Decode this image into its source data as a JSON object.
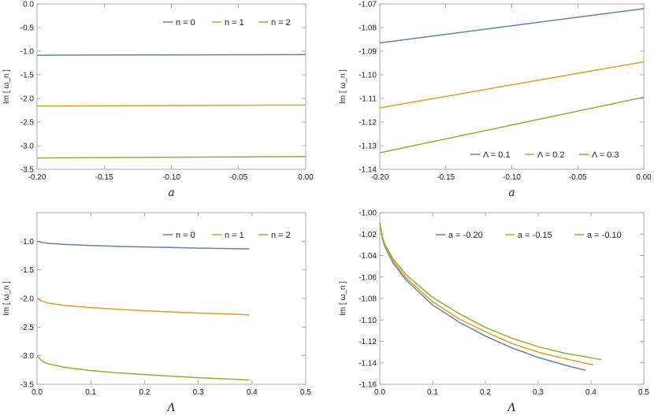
{
  "colors": {
    "blue": "#5E81B5",
    "orange": "#E19C24",
    "green": "#8FB032"
  },
  "chart_data": [
    {
      "type": "line",
      "title": "",
      "xlabel": "a",
      "ylabel": "Im [ ω_n ]",
      "xlim": [
        -0.2,
        0.0
      ],
      "ylim": [
        -3.5,
        0.0
      ],
      "xticks": [
        "-0.20",
        "-0.15",
        "-0.10",
        "-0.05",
        "0.00"
      ],
      "yticks": [
        "0.0",
        "-0.5",
        "-1.0",
        "-1.5",
        "-2.0",
        "-2.5",
        "-3.0",
        "-3.5"
      ],
      "legend_position": "top-right",
      "series": [
        {
          "name": "n = 0",
          "color": "blue",
          "x": [
            -0.2,
            0.0
          ],
          "y": [
            -1.085,
            -1.072
          ]
        },
        {
          "name": "n = 1",
          "color": "orange",
          "x": [
            -0.2,
            0.0
          ],
          "y": [
            -2.16,
            -2.14
          ]
        },
        {
          "name": "n = 2",
          "color": "green",
          "x": [
            -0.2,
            0.0
          ],
          "y": [
            -3.26,
            -3.23
          ]
        }
      ]
    },
    {
      "type": "line",
      "title": "",
      "xlabel": "a",
      "ylabel": "Im [ ω_n ]",
      "xlim": [
        -0.2,
        0.0
      ],
      "ylim": [
        -1.14,
        -1.07
      ],
      "xticks": [
        "-0.20",
        "-0.15",
        "-0.10",
        "-0.05",
        "0.00"
      ],
      "yticks": [
        "-1.07",
        "-1.08",
        "-1.09",
        "-1.10",
        "-1.11",
        "-1.12",
        "-1.13",
        "-1.14"
      ],
      "legend_position": "bottom-right",
      "series": [
        {
          "name": "Λ = 0.1",
          "color": "blue",
          "x": [
            -0.2,
            0.0
          ],
          "y": [
            -1.0865,
            -1.072
          ]
        },
        {
          "name": "Λ = 0.2",
          "color": "orange",
          "x": [
            -0.2,
            0.0
          ],
          "y": [
            -1.114,
            -1.0945
          ]
        },
        {
          "name": "Λ = 0.3",
          "color": "green",
          "x": [
            -0.2,
            0.0
          ],
          "y": [
            -1.133,
            -1.1095
          ]
        }
      ]
    },
    {
      "type": "line",
      "title": "",
      "xlabel": "Λ",
      "ylabel": "Im [ ω_n ]",
      "xlim": [
        0.0,
        0.5
      ],
      "ylim": [
        -3.5,
        -0.5
      ],
      "xticks": [
        "0.0",
        "0.1",
        "0.2",
        "0.3",
        "0.4",
        "0.5"
      ],
      "yticks": [
        "-1.0",
        "-1.5",
        "-2.0",
        "-2.5",
        "-3.0",
        "-3.5"
      ],
      "legend_position": "top-right",
      "series": [
        {
          "name": "n = 0",
          "color": "blue",
          "x": [
            0.0,
            0.01,
            0.02,
            0.05,
            0.1,
            0.15,
            0.2,
            0.25,
            0.3,
            0.35,
            0.395
          ],
          "y": [
            -1.0,
            -1.025,
            -1.035,
            -1.055,
            -1.075,
            -1.09,
            -1.1,
            -1.11,
            -1.12,
            -1.128,
            -1.135
          ]
        },
        {
          "name": "n = 1",
          "color": "orange",
          "x": [
            0.0,
            0.01,
            0.02,
            0.05,
            0.1,
            0.15,
            0.2,
            0.25,
            0.3,
            0.35,
            0.395
          ],
          "y": [
            -2.0,
            -2.05,
            -2.08,
            -2.12,
            -2.16,
            -2.19,
            -2.215,
            -2.235,
            -2.255,
            -2.27,
            -2.285
          ]
        },
        {
          "name": "n = 2",
          "color": "green",
          "x": [
            0.0,
            0.01,
            0.02,
            0.05,
            0.1,
            0.15,
            0.2,
            0.25,
            0.3,
            0.35,
            0.395
          ],
          "y": [
            -3.0,
            -3.1,
            -3.14,
            -3.2,
            -3.26,
            -3.3,
            -3.33,
            -3.36,
            -3.385,
            -3.405,
            -3.425
          ]
        }
      ]
    },
    {
      "type": "line",
      "title": "",
      "xlabel": "Λ",
      "ylabel": "Im [ ω_n ]",
      "xlim": [
        0.0,
        0.5
      ],
      "ylim": [
        -1.16,
        -1.0
      ],
      "xticks": [
        "0.0",
        "0.1",
        "0.2",
        "0.3",
        "0.4",
        "0.5"
      ],
      "yticks": [
        "-1.00",
        "-1.02",
        "-1.04",
        "-1.06",
        "-1.08",
        "-1.10",
        "-1.12",
        "-1.14",
        "-1.16"
      ],
      "legend_position": "top-right",
      "series": [
        {
          "name": "a = -0.20",
          "color": "blue",
          "x": [
            0.0,
            0.005,
            0.01,
            0.025,
            0.05,
            0.1,
            0.15,
            0.2,
            0.25,
            0.3,
            0.35,
            0.39
          ],
          "y": [
            -1.01,
            -1.025,
            -1.032,
            -1.047,
            -1.063,
            -1.086,
            -1.102,
            -1.115,
            -1.126,
            -1.135,
            -1.142,
            -1.147
          ]
        },
        {
          "name": "a = -0.15",
          "color": "orange",
          "x": [
            0.0,
            0.005,
            0.01,
            0.025,
            0.05,
            0.1,
            0.15,
            0.2,
            0.25,
            0.3,
            0.35,
            0.405
          ],
          "y": [
            -1.01,
            -1.024,
            -1.031,
            -1.045,
            -1.061,
            -1.083,
            -1.099,
            -1.111,
            -1.122,
            -1.13,
            -1.136,
            -1.142
          ]
        },
        {
          "name": "a = -0.10",
          "color": "green",
          "x": [
            0.0,
            0.005,
            0.01,
            0.025,
            0.05,
            0.1,
            0.15,
            0.2,
            0.25,
            0.3,
            0.35,
            0.42
          ],
          "y": [
            -1.01,
            -1.023,
            -1.03,
            -1.043,
            -1.058,
            -1.079,
            -1.094,
            -1.107,
            -1.117,
            -1.125,
            -1.131,
            -1.137
          ]
        }
      ]
    }
  ]
}
